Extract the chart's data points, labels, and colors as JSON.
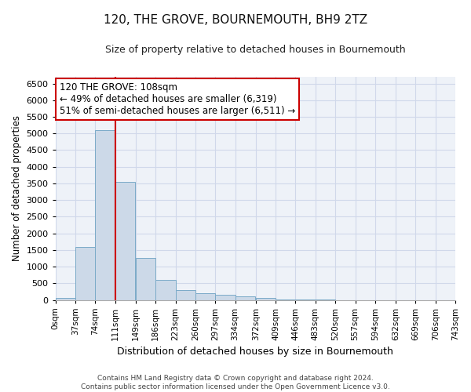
{
  "title": "120, THE GROVE, BOURNEMOUTH, BH9 2TZ",
  "subtitle": "Size of property relative to detached houses in Bournemouth",
  "xlabel": "Distribution of detached houses by size in Bournemouth",
  "ylabel": "Number of detached properties",
  "footer_line1": "Contains HM Land Registry data © Crown copyright and database right 2024.",
  "footer_line2": "Contains public sector information licensed under the Open Government Licence v3.0.",
  "bins": [
    0,
    37,
    74,
    111,
    149,
    186,
    223,
    260,
    297,
    334,
    372,
    409,
    446,
    483,
    520,
    557,
    594,
    632,
    669,
    706,
    743
  ],
  "bin_labels": [
    "0sqm",
    "37sqm",
    "74sqm",
    "111sqm",
    "149sqm",
    "186sqm",
    "223sqm",
    "260sqm",
    "297sqm",
    "334sqm",
    "372sqm",
    "409sqm",
    "446sqm",
    "483sqm",
    "520sqm",
    "557sqm",
    "594sqm",
    "632sqm",
    "669sqm",
    "706sqm",
    "743sqm"
  ],
  "values": [
    50,
    1600,
    5100,
    3550,
    1270,
    600,
    300,
    200,
    150,
    100,
    50,
    5,
    20,
    5,
    0,
    0,
    0,
    0,
    0,
    0
  ],
  "bar_color": "#ccd9e8",
  "bar_edge_color": "#7aaac8",
  "vline_x": 111,
  "vline_color": "#cc0000",
  "ylim": [
    0,
    6700
  ],
  "yticks": [
    0,
    500,
    1000,
    1500,
    2000,
    2500,
    3000,
    3500,
    4000,
    4500,
    5000,
    5500,
    6000,
    6500
  ],
  "annotation_title": "120 THE GROVE: 108sqm",
  "annotation_line1": "← 49% of detached houses are smaller (6,319)",
  "annotation_line2": "51% of semi-detached houses are larger (6,511) →",
  "annotation_box_color": "#ffffff",
  "annotation_box_edge": "#cc0000",
  "grid_color": "#d0d8ea",
  "bg_color": "#eef2f8",
  "title_fontsize": 11,
  "subtitle_fontsize": 9
}
